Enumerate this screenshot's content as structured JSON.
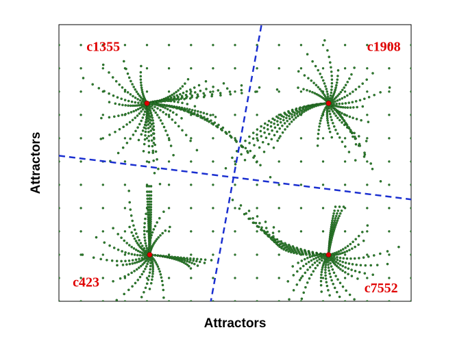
{
  "chart_data": {
    "type": "scatter",
    "xlabel": "Attractors",
    "ylabel": "Attractors",
    "xlim": [
      0,
      12.8
    ],
    "ylim": [
      0,
      9.5
    ],
    "grid": false,
    "colors": {
      "points": "#2e7d2e",
      "attractor": "#e00000",
      "separatrix": "#1a2fd0",
      "labels": "#e00000",
      "frame": "#000000"
    },
    "labels": [
      {
        "text": "c1355",
        "x": 1.0,
        "y": 8.6
      },
      {
        "text": "c1908",
        "x": 11.2,
        "y": 8.6
      },
      {
        "text": "c423",
        "x": 0.5,
        "y": 0.5
      },
      {
        "text": "c7552",
        "x": 11.1,
        "y": 0.3
      }
    ],
    "attractors": [
      {
        "name": "c1355",
        "x": 3.2,
        "y": 6.8
      },
      {
        "name": "c1908",
        "x": 9.8,
        "y": 6.8
      },
      {
        "name": "c423",
        "x": 3.3,
        "y": 1.6
      },
      {
        "name": "c7552",
        "x": 9.8,
        "y": 1.6
      }
    ],
    "separatrices": [
      {
        "x": [
          5.5,
          7.4
        ],
        "y": [
          -0.1,
          9.7
        ]
      },
      {
        "x": [
          0.0,
          12.8
        ],
        "y": [
          5.0,
          3.5
        ]
      }
    ],
    "lattice": {
      "x_start": 0,
      "x_step": 0.8,
      "x_end": 12.8,
      "y_start": 0,
      "y_step": 0.8,
      "y_end": 9.6
    }
  }
}
